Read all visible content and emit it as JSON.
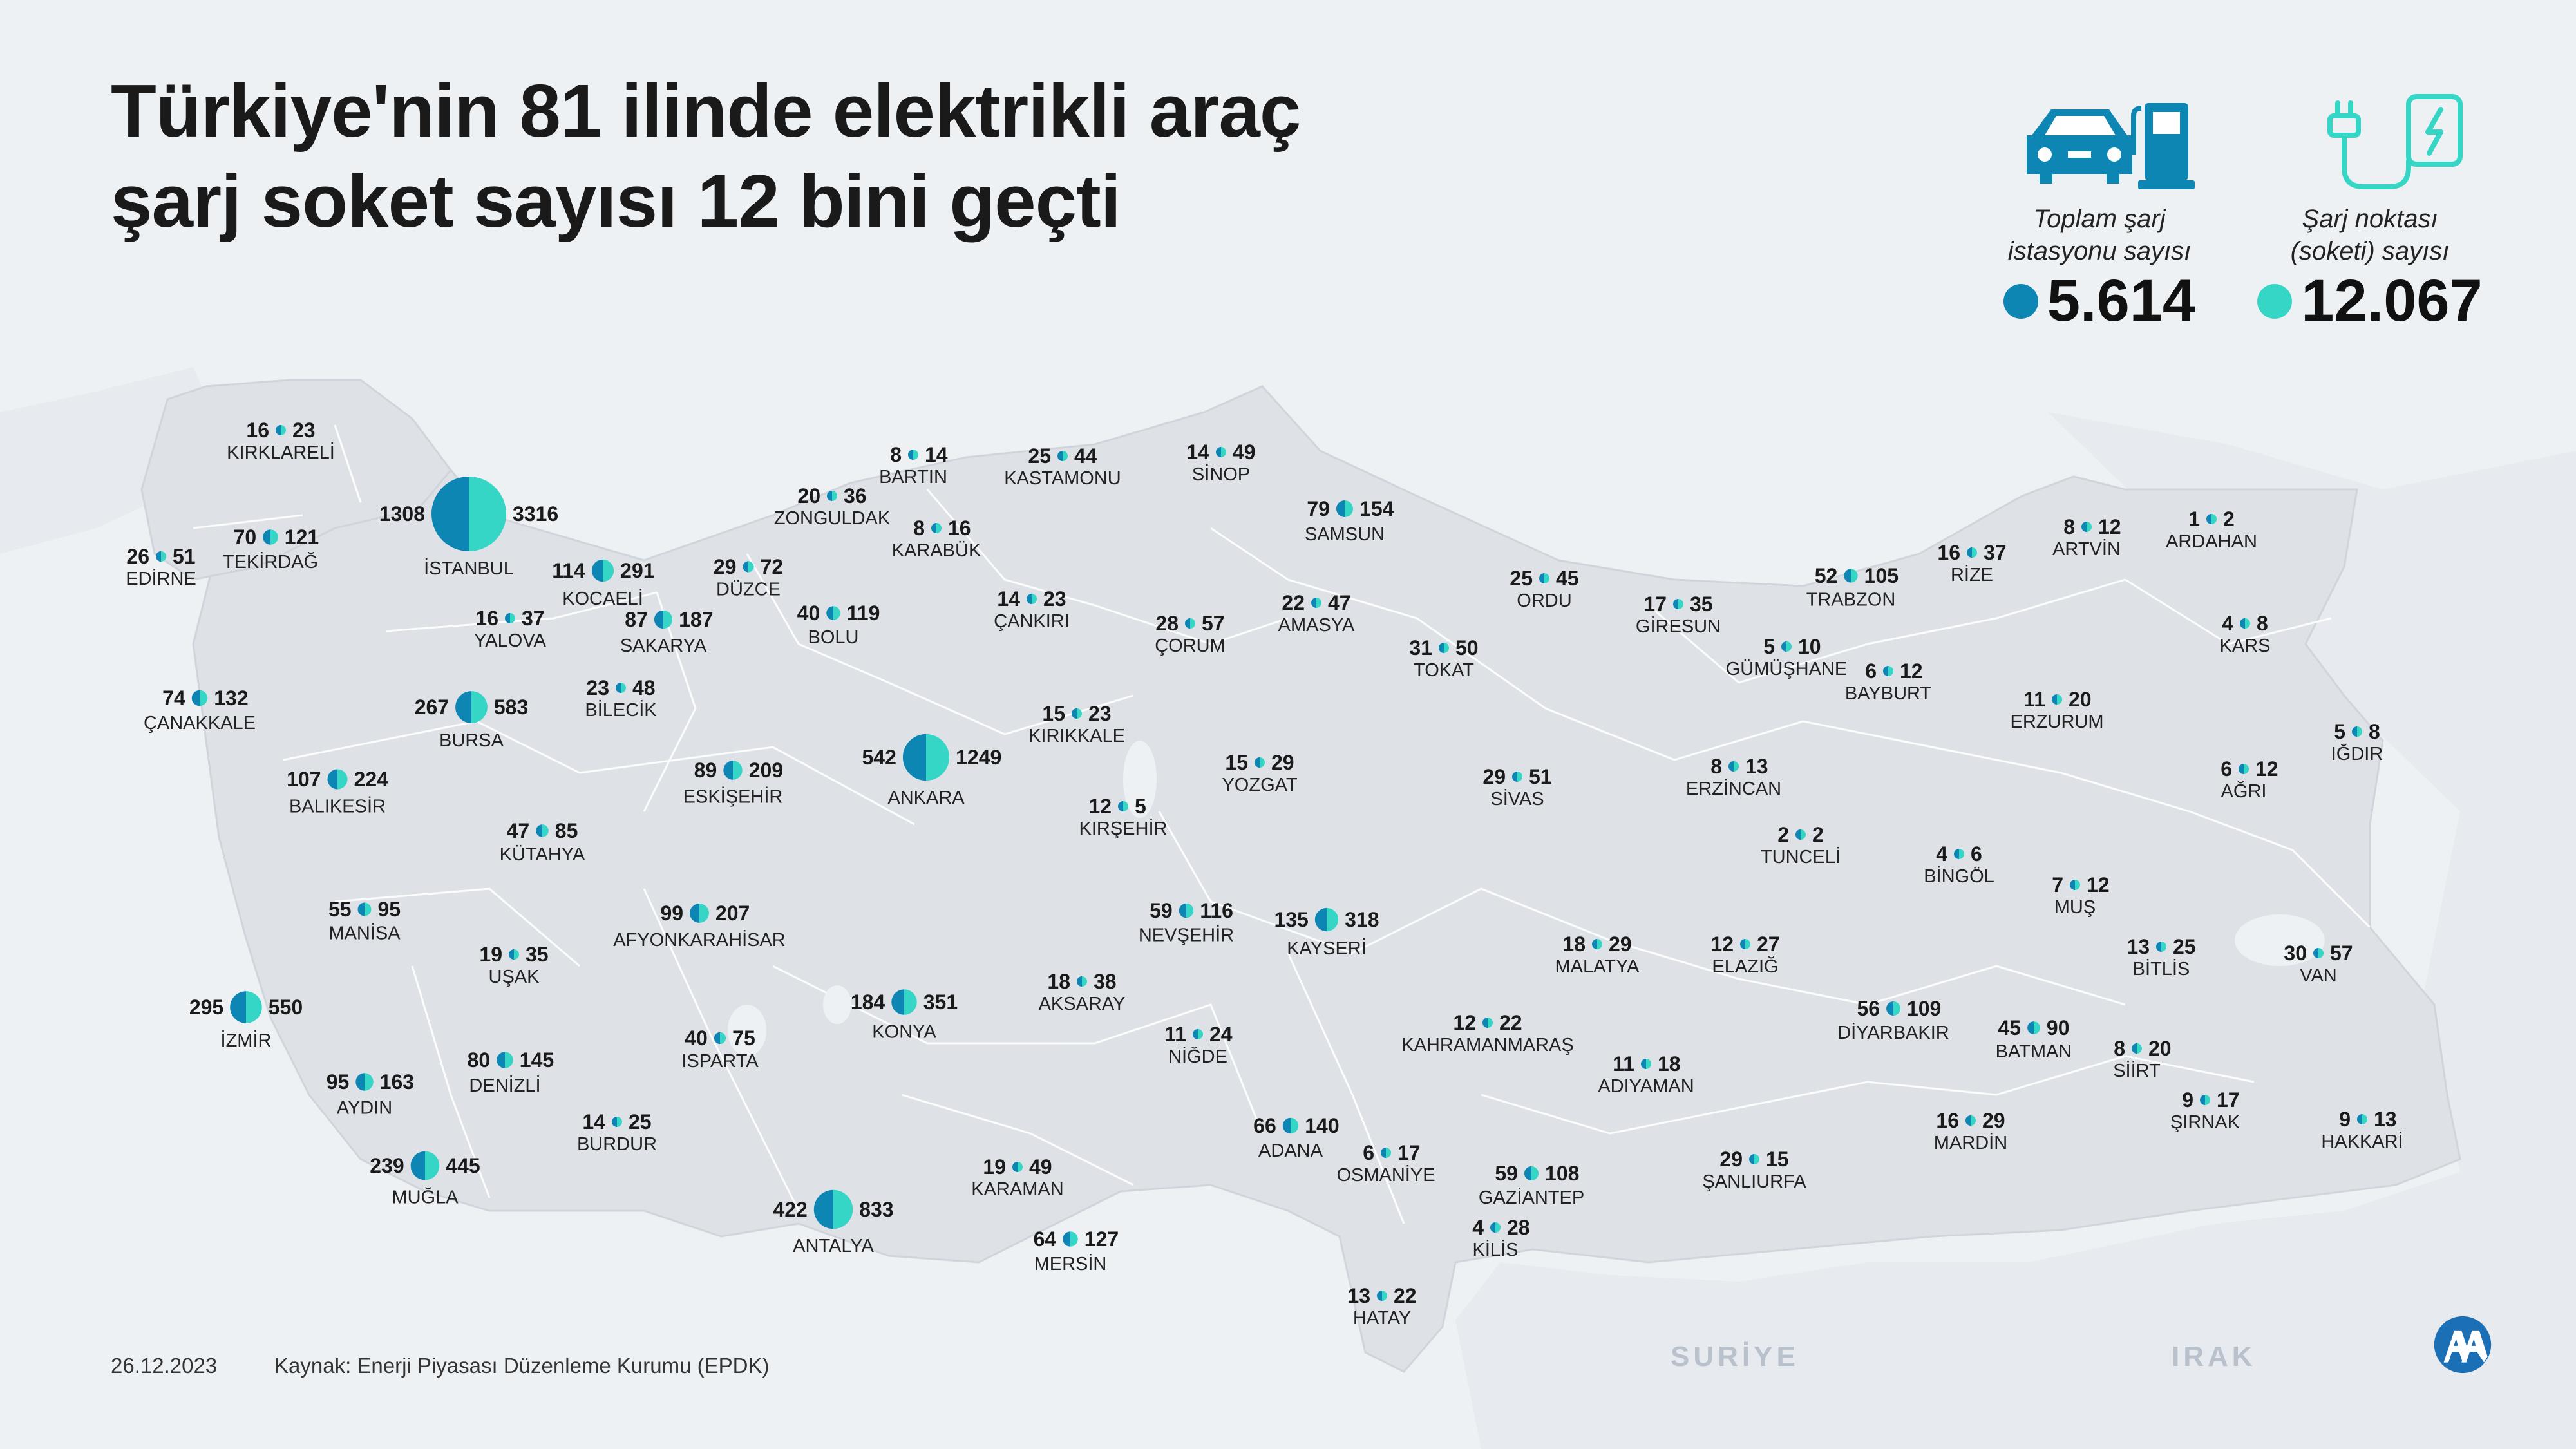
{
  "title_lines": [
    "Türkiye'nin 81 ilinde elektrikli araç",
    "şarj soket sayısı 12 bini geçti"
  ],
  "legend": {
    "stations": {
      "label_lines": [
        "Toplam şarj",
        "istasyonu sayısı"
      ],
      "value": "5.614",
      "color": "#0e86b4",
      "icon": "car-charging-station-icon"
    },
    "sockets": {
      "label_lines": [
        "Şarj noktası",
        "(soketi) sayısı"
      ],
      "value": "12.067",
      "color": "#35d6c6",
      "icon": "charging-plug-icon"
    }
  },
  "neighbors": {
    "syria": "SURİYE",
    "iraq": "IRAK"
  },
  "footer": {
    "date": "26.12.2023",
    "source": "Kaynak: Enerji Piyasası Düzenleme Kurumu (EPDK)"
  },
  "colors": {
    "land": "#dee2e7",
    "sea": "#eef1f4",
    "border": "#ffffff",
    "station": "#0e86b4",
    "socket": "#35d6c6"
  },
  "provinces": [
    {
      "name": "KIRKLARELİ",
      "stations": 16,
      "sockets": 23
    },
    {
      "name": "EDİRNE",
      "stations": 26,
      "sockets": 51
    },
    {
      "name": "TEKİRDAĞ",
      "stations": 70,
      "sockets": 121
    },
    {
      "name": "İSTANBUL",
      "stations": 1308,
      "sockets": 3316
    },
    {
      "name": "ÇANAKKALE",
      "stations": 74,
      "sockets": 132
    },
    {
      "name": "YALOVA",
      "stations": 16,
      "sockets": 37
    },
    {
      "name": "KOCAELİ",
      "stations": 114,
      "sockets": 291
    },
    {
      "name": "SAKARYA",
      "stations": 87,
      "sockets": 187
    },
    {
      "name": "DÜZCE",
      "stations": 29,
      "sockets": 72
    },
    {
      "name": "ZONGULDAK",
      "stations": 20,
      "sockets": 36
    },
    {
      "name": "BARTIN",
      "stations": 8,
      "sockets": 14
    },
    {
      "name": "KARABÜK",
      "stations": 8,
      "sockets": 16
    },
    {
      "name": "KASTAMONU",
      "stations": 25,
      "sockets": 44
    },
    {
      "name": "SİNOP",
      "stations": 14,
      "sockets": 49
    },
    {
      "name": "SAMSUN",
      "stations": 79,
      "sockets": 154
    },
    {
      "name": "BOLU",
      "stations": 40,
      "sockets": 119
    },
    {
      "name": "ÇANKIRI",
      "stations": 14,
      "sockets": 23
    },
    {
      "name": "ÇORUM",
      "stations": 28,
      "sockets": 57
    },
    {
      "name": "AMASYA",
      "stations": 22,
      "sockets": 47
    },
    {
      "name": "BURSA",
      "stations": 267,
      "sockets": 583
    },
    {
      "name": "BİLECİK",
      "stations": 23,
      "sockets": 48
    },
    {
      "name": "BALIKESİR",
      "stations": 107,
      "sockets": 224
    },
    {
      "name": "ESKİŞEHİR",
      "stations": 89,
      "sockets": 209
    },
    {
      "name": "ANKARA",
      "stations": 542,
      "sockets": 1249
    },
    {
      "name": "KIRIKKALE",
      "stations": 15,
      "sockets": 23
    },
    {
      "name": "KÜTAHYA",
      "stations": 47,
      "sockets": 85
    },
    {
      "name": "KIRŞEHİR",
      "stations": 12,
      "sockets": 5
    },
    {
      "name": "YOZGAT",
      "stations": 15,
      "sockets": 29
    },
    {
      "name": "TOKAT",
      "stations": 31,
      "sockets": 50
    },
    {
      "name": "ORDU",
      "stations": 25,
      "sockets": 45
    },
    {
      "name": "GİRESUN",
      "stations": 17,
      "sockets": 35
    },
    {
      "name": "TRABZON",
      "stations": 52,
      "sockets": 105
    },
    {
      "name": "RİZE",
      "stations": 16,
      "sockets": 37
    },
    {
      "name": "ARTVİN",
      "stations": 8,
      "sockets": 12
    },
    {
      "name": "ARDAHAN",
      "stations": 1,
      "sockets": 2
    },
    {
      "name": "KARS",
      "stations": 4,
      "sockets": 8
    },
    {
      "name": "GÜMÜŞHANE",
      "stations": 5,
      "sockets": 10
    },
    {
      "name": "BAYBURT",
      "stations": 6,
      "sockets": 12
    },
    {
      "name": "ERZURUM",
      "stations": 11,
      "sockets": 20
    },
    {
      "name": "IĞDIR",
      "stations": 5,
      "sockets": 8
    },
    {
      "name": "AĞRI",
      "stations": 6,
      "sockets": 12
    },
    {
      "name": "SİVAS",
      "stations": 29,
      "sockets": 51
    },
    {
      "name": "ERZİNCAN",
      "stations": 8,
      "sockets": 13
    },
    {
      "name": "TUNCELİ",
      "stations": 2,
      "sockets": 2
    },
    {
      "name": "BİNGÖL",
      "stations": 4,
      "sockets": 6
    },
    {
      "name": "MUŞ",
      "stations": 7,
      "sockets": 12
    },
    {
      "name": "MANİSA",
      "stations": 55,
      "sockets": 95
    },
    {
      "name": "AFYONKARAHİSAR",
      "stations": 99,
      "sockets": 207
    },
    {
      "name": "UŞAK",
      "stations": 19,
      "sockets": 35
    },
    {
      "name": "NEVŞEHİR",
      "stations": 59,
      "sockets": 116
    },
    {
      "name": "KAYSERİ",
      "stations": 135,
      "sockets": 318
    },
    {
      "name": "MALATYA",
      "stations": 18,
      "sockets": 29
    },
    {
      "name": "ELAZIĞ",
      "stations": 12,
      "sockets": 27
    },
    {
      "name": "BİTLİS",
      "stations": 13,
      "sockets": 25
    },
    {
      "name": "VAN",
      "stations": 30,
      "sockets": 57
    },
    {
      "name": "İZMİR",
      "stations": 295,
      "sockets": 550
    },
    {
      "name": "KONYA",
      "stations": 184,
      "sockets": 351
    },
    {
      "name": "AKSARAY",
      "stations": 18,
      "sockets": 38
    },
    {
      "name": "ISPARTA",
      "stations": 40,
      "sockets": 75
    },
    {
      "name": "DENİZLİ",
      "stations": 80,
      "sockets": 145
    },
    {
      "name": "AYDIN",
      "stations": 95,
      "sockets": 163
    },
    {
      "name": "NİĞDE",
      "stations": 11,
      "sockets": 24
    },
    {
      "name": "KAHRAMANMARAŞ",
      "stations": 12,
      "sockets": 22
    },
    {
      "name": "DİYARBAKIR",
      "stations": 56,
      "sockets": 109
    },
    {
      "name": "BATMAN",
      "stations": 45,
      "sockets": 90
    },
    {
      "name": "SİİRT",
      "stations": 8,
      "sockets": 20
    },
    {
      "name": "ADIYAMAN",
      "stations": 11,
      "sockets": 18
    },
    {
      "name": "ŞIRNAK",
      "stations": 9,
      "sockets": 17
    },
    {
      "name": "BURDUR",
      "stations": 14,
      "sockets": 25
    },
    {
      "name": "MUĞLA",
      "stations": 239,
      "sockets": 445
    },
    {
      "name": "KARAMAN",
      "stations": 19,
      "sockets": 49
    },
    {
      "name": "ADANA",
      "stations": 66,
      "sockets": 140
    },
    {
      "name": "OSMANİYE",
      "stations": 6,
      "sockets": 17
    },
    {
      "name": "GAZİANTEP",
      "stations": 59,
      "sockets": 108
    },
    {
      "name": "ŞANLIURFA",
      "stations": 29,
      "sockets": 15
    },
    {
      "name": "MARDİN",
      "stations": 16,
      "sockets": 29
    },
    {
      "name": "HAKKARİ",
      "stations": 9,
      "sockets": 13
    },
    {
      "name": "ANTALYA",
      "stations": 422,
      "sockets": 833
    },
    {
      "name": "MERSİN",
      "stations": 64,
      "sockets": 127
    },
    {
      "name": "KİLİS",
      "stations": 4,
      "sockets": 28
    },
    {
      "name": "HATAY",
      "stations": 13,
      "sockets": 22
    }
  ]
}
